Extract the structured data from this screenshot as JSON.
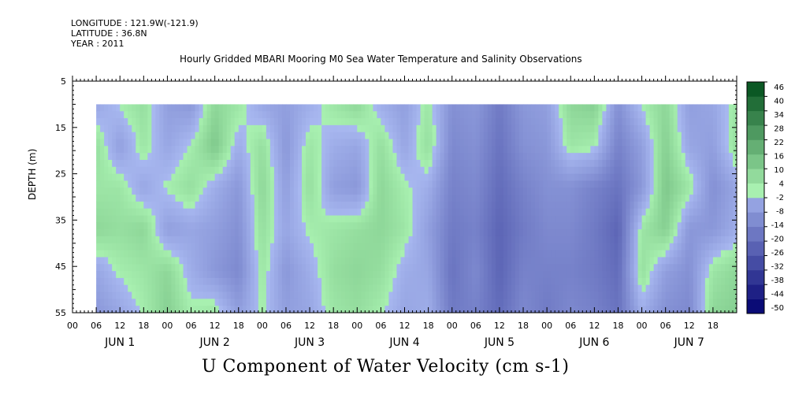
{
  "header": {
    "longitude": "LONGITUDE : 121.9W(-121.9)",
    "latitude": "LATITUDE : 36.8N",
    "year": "YEAR : 2011"
  },
  "chart_data": {
    "type": "heatmap",
    "title": "Hourly Gridded MBARI Mooring M0 Sea Water Temperature and Salinity Observations",
    "variable_label": "U Component of Water Velocity (cm s-1)",
    "ylabel": "DEPTH (m)",
    "y_range": [
      5,
      55
    ],
    "y_reversed": true,
    "y_ticks": [
      5,
      15,
      25,
      35,
      45,
      55
    ],
    "data_depth_range": [
      10,
      55
    ],
    "x_range_hours": [
      0,
      168
    ],
    "data_start_hour": 6,
    "hour_ticks": [
      0,
      6,
      12,
      18
    ],
    "x_tick_labels": [
      "00",
      "06",
      "12",
      "18",
      "00",
      "06",
      "12",
      "18",
      "00",
      "06",
      "12",
      "18",
      "00",
      "06",
      "12",
      "18",
      "00",
      "06",
      "12",
      "18",
      "00",
      "06",
      "12",
      "18",
      "00",
      "06",
      "12",
      "18"
    ],
    "days": [
      "JUN  1",
      "JUN  2",
      "JUN  3",
      "JUN  4",
      "JUN  5",
      "JUN  6",
      "JUN  7"
    ],
    "colorbar": {
      "levels": [
        -50,
        -44,
        -38,
        -32,
        -26,
        -20,
        -14,
        -8,
        -2,
        4,
        10,
        16,
        22,
        28,
        34,
        40,
        46
      ],
      "labels": [
        "46",
        "40",
        "34",
        "28",
        "22",
        "16",
        "10",
        "4",
        "-2",
        "-8",
        "-14",
        "-20",
        "-26",
        "-32",
        "-38",
        "-44",
        "-50"
      ],
      "low_color": "#00006e",
      "mid_low_color": "#a8b8f0",
      "mid_high_color": "#a8f0b0",
      "high_color": "#004d1a"
    },
    "columns": [
      {
        "hour": 6,
        "depth_values": [
          -4,
          6,
          4,
          8,
          -4,
          -8
        ]
      },
      {
        "hour": 12,
        "depth_values": [
          2,
          -6,
          4,
          6,
          2,
          -4
        ]
      },
      {
        "hour": 18,
        "depth_values": [
          6,
          4,
          -4,
          8,
          4,
          2
        ]
      },
      {
        "hour": 24,
        "depth_values": [
          -6,
          -4,
          2,
          -6,
          8,
          10
        ]
      },
      {
        "hour": 30,
        "depth_values": [
          -8,
          2,
          6,
          -4,
          -2,
          2
        ]
      },
      {
        "hour": 36,
        "depth_values": [
          8,
          12,
          -2,
          -6,
          -8,
          4
        ]
      },
      {
        "hour": 42,
        "depth_values": [
          4,
          -2,
          -8,
          -10,
          -12,
          -6
        ]
      },
      {
        "hour": 48,
        "depth_values": [
          -4,
          6,
          8,
          6,
          4,
          2
        ]
      },
      {
        "hour": 54,
        "depth_values": [
          -6,
          -8,
          -6,
          -4,
          -8,
          -6
        ]
      },
      {
        "hour": 60,
        "depth_values": [
          -2,
          4,
          6,
          2,
          -2,
          -4
        ]
      },
      {
        "hour": 66,
        "depth_values": [
          4,
          -2,
          -6,
          4,
          6,
          4
        ]
      },
      {
        "hour": 72,
        "depth_values": [
          8,
          -4,
          -8,
          6,
          8,
          6
        ]
      },
      {
        "hour": 78,
        "depth_values": [
          -2,
          6,
          8,
          8,
          6,
          2
        ]
      },
      {
        "hour": 84,
        "depth_values": [
          -6,
          -4,
          2,
          4,
          -2,
          -4
        ]
      },
      {
        "hour": 90,
        "depth_values": [
          4,
          6,
          -2,
          -6,
          -4,
          -2
        ]
      },
      {
        "hour": 96,
        "depth_values": [
          -10,
          -12,
          -14,
          -16,
          -18,
          -16
        ]
      },
      {
        "hour": 102,
        "depth_values": [
          -8,
          -10,
          -12,
          -14,
          -12,
          -14
        ]
      },
      {
        "hour": 108,
        "depth_values": [
          -16,
          -18,
          -20,
          -22,
          -22,
          -20
        ]
      },
      {
        "hour": 114,
        "depth_values": [
          -8,
          -10,
          -14,
          -16,
          -14,
          -12
        ]
      },
      {
        "hour": 120,
        "depth_values": [
          -6,
          -8,
          -10,
          -12,
          -14,
          -16
        ]
      },
      {
        "hour": 126,
        "depth_values": [
          8,
          4,
          -10,
          -12,
          -14,
          -12
        ]
      },
      {
        "hour": 132,
        "depth_values": [
          10,
          2,
          -14,
          -16,
          -16,
          -14
        ]
      },
      {
        "hour": 138,
        "depth_values": [
          -10,
          -14,
          -18,
          -22,
          -20,
          -18
        ]
      },
      {
        "hour": 144,
        "depth_values": [
          2,
          -6,
          -8,
          4,
          6,
          -2
        ]
      },
      {
        "hour": 150,
        "depth_values": [
          8,
          10,
          12,
          10,
          -6,
          -10
        ]
      },
      {
        "hour": 156,
        "depth_values": [
          -6,
          -4,
          4,
          -8,
          -10,
          -12
        ]
      },
      {
        "hour": 162,
        "depth_values": [
          -4,
          -6,
          -10,
          -8,
          4,
          8
        ]
      },
      {
        "hour": 168,
        "depth_values": [
          4,
          6,
          -4,
          -2,
          8,
          10
        ]
      }
    ],
    "depth_levels": [
      10,
      19,
      28,
      37,
      46,
      55
    ]
  }
}
